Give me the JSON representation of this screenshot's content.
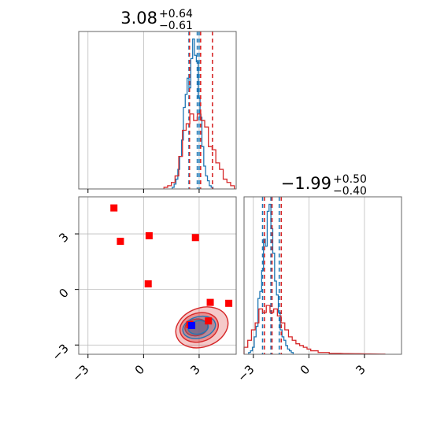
{
  "chart_data": {
    "type": "corner",
    "params": [
      {
        "title": {
          "value": "3.08",
          "plus": "+0.64",
          "minus": "−0.61"
        },
        "xlim": [
          -3.5,
          5.0
        ],
        "series": [
          {
            "name": "",
            "color": "#1f77b4",
            "style": "step",
            "bin_width": 0.1,
            "x": [
              1.6,
              1.7,
              1.8,
              1.9,
              2.0,
              2.1,
              2.2,
              2.3,
              2.4,
              2.5,
              2.6,
              2.7,
              2.8,
              2.9,
              3.0,
              3.1,
              3.2,
              3.3,
              3.4,
              3.5,
              3.6,
              3.7
            ],
            "values": [
              0.01,
              0.03,
              0.06,
              0.12,
              0.2,
              0.3,
              0.5,
              0.58,
              0.68,
              0.62,
              0.8,
              0.92,
              0.82,
              0.78,
              0.56,
              0.44,
              0.26,
              0.14,
              0.08,
              0.05,
              0.02,
              0.01
            ],
            "quantiles": [
              2.45,
              2.9,
              3.0
            ]
          },
          {
            "name": "",
            "color": "#d62728",
            "style": "step",
            "bin_width": 0.2,
            "x": [
              1.2,
              1.4,
              1.6,
              1.8,
              2.0,
              2.2,
              2.4,
              2.6,
              2.8,
              3.0,
              3.2,
              3.4,
              3.6,
              3.8,
              4.0,
              4.2,
              4.4,
              4.6,
              4.8
            ],
            "values": [
              0.01,
              0.02,
              0.04,
              0.08,
              0.2,
              0.36,
              0.4,
              0.46,
              0.42,
              0.46,
              0.42,
              0.38,
              0.26,
              0.24,
              0.16,
              0.12,
              0.06,
              0.04,
              0.02
            ],
            "quantiles": [
              2.48,
              3.08,
              3.72
            ]
          }
        ]
      },
      {
        "title": {
          "value": "−1.99",
          "plus": "+0.50",
          "minus": "−0.40"
        },
        "xlim": [
          -3.5,
          5.0
        ],
        "series": [
          {
            "name": "",
            "color": "#1f77b4",
            "style": "step",
            "bin_width": 0.1,
            "x": [
              -3.2,
              -3.1,
              -3.0,
              -2.9,
              -2.8,
              -2.7,
              -2.6,
              -2.5,
              -2.4,
              -2.3,
              -2.2,
              -2.1,
              -2.0,
              -1.9,
              -1.8,
              -1.7,
              -1.6,
              -1.5,
              -1.4,
              -1.3,
              -1.2,
              -1.1,
              -1.0,
              -0.9
            ],
            "values": [
              0.01,
              0.02,
              0.04,
              0.1,
              0.16,
              0.32,
              0.36,
              0.48,
              0.66,
              0.62,
              0.82,
              0.86,
              0.72,
              0.58,
              0.42,
              0.34,
              0.24,
              0.14,
              0.1,
              0.08,
              0.05,
              0.03,
              0.02,
              0.01
            ],
            "quantiles": [
              -2.5,
              -2.05,
              -1.6
            ]
          },
          {
            "name": "",
            "color": "#d62728",
            "style": "step",
            "bin_width": 0.2,
            "x": [
              -3.4,
              -3.2,
              -3.0,
              -2.8,
              -2.6,
              -2.4,
              -2.2,
              -2.0,
              -1.8,
              -1.6,
              -1.4,
              -1.2,
              -1.0,
              -0.8,
              -0.6,
              -0.4,
              -0.2,
              0.0,
              0.2,
              0.4,
              0.6,
              0.8,
              1.0,
              1.2,
              1.6,
              2.0,
              2.6,
              3.2,
              4.0
            ],
            "values": [
              0.04,
              0.08,
              0.14,
              0.18,
              0.26,
              0.24,
              0.28,
              0.24,
              0.26,
              0.22,
              0.18,
              0.14,
              0.1,
              0.08,
              0.06,
              0.05,
              0.04,
              0.03,
              0.02,
              0.02,
              0.01,
              0.01,
              0.01,
              0.005,
              0.005,
              0.004,
              0.003,
              0.002,
              0.001
            ],
            "quantiles": [
              -2.4,
              -1.99,
              -1.49
            ]
          }
        ]
      }
    ],
    "joint": {
      "xlim": [
        -3.5,
        5.0
      ],
      "ylim": [
        -3.5,
        5.0
      ],
      "contours": [
        {
          "color": "#d62728",
          "cx": 3.15,
          "cy": -2.05,
          "rx": 1.45,
          "ry": 1.05,
          "rotate_deg": -20,
          "fill_opacity": 0.25
        },
        {
          "color": "#d62728",
          "cx": 3.0,
          "cy": -2.05,
          "rx": 1.05,
          "ry": 0.78,
          "rotate_deg": -15,
          "fill_opacity": 0.35
        },
        {
          "color": "#d62728",
          "cx": 2.85,
          "cy": -2.05,
          "rx": 0.62,
          "ry": 0.45,
          "rotate_deg": -10,
          "fill_opacity": 0.45
        },
        {
          "color": "#1f77b4",
          "cx": 3.0,
          "cy": -2.05,
          "rx": 0.9,
          "ry": 0.58,
          "rotate_deg": -15,
          "fill_opacity": 0.25
        },
        {
          "color": "#1f77b4",
          "cx": 2.95,
          "cy": -2.05,
          "rx": 0.55,
          "ry": 0.36,
          "rotate_deg": -10,
          "fill_opacity": 0.35
        }
      ],
      "red_markers": {
        "color": "#ff0000",
        "x": [
          -1.6,
          -1.25,
          0.3,
          2.8,
          0.25,
          3.6,
          4.6,
          3.5,
          2.5
        ],
        "y": [
          4.4,
          2.6,
          2.9,
          2.8,
          0.3,
          -0.7,
          -0.75,
          -1.7,
          -1.9
        ]
      },
      "blue_marker": {
        "color": "#0000ff",
        "x": 2.6,
        "y": -1.95
      }
    },
    "ticks": {
      "values": [
        -3,
        0,
        3
      ],
      "labels": [
        "−3",
        "0",
        "3"
      ]
    },
    "grid": true
  }
}
